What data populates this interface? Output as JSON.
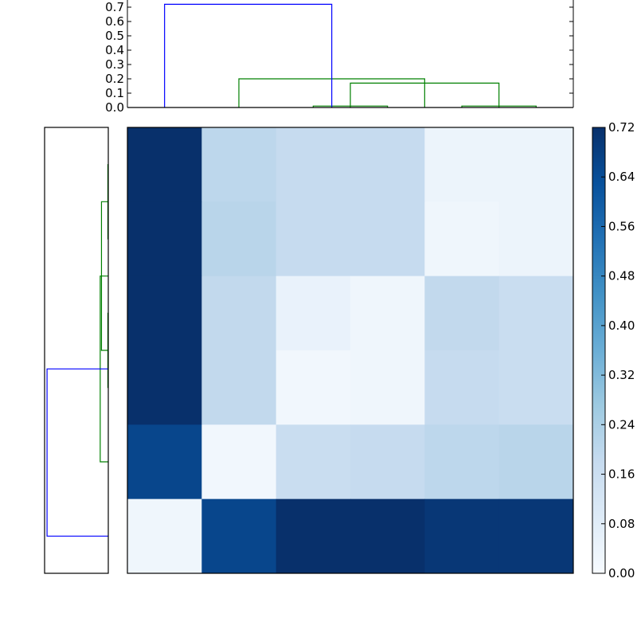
{
  "chart_data": [
    {
      "type": "dendrogram",
      "orientation": "top",
      "ylim": [
        0,
        0.75
      ],
      "yticks": [
        "0.0",
        "0.1",
        "0.2",
        "0.3",
        "0.4",
        "0.5",
        "0.6",
        "0.7"
      ],
      "leaf_count": 6,
      "links": [
        {
          "left": 2,
          "right": 3,
          "height": 0.01,
          "color": "#008000"
        },
        {
          "left": 4,
          "right": 5,
          "height": 0.01,
          "color": "#008000"
        },
        {
          "left": 2.5,
          "right": 4.5,
          "height": 0.17,
          "color": "#008000"
        },
        {
          "left": 1,
          "right": 3.5,
          "height": 0.2,
          "color": "#008000"
        },
        {
          "left": 0,
          "right": 2.25,
          "height": 0.72,
          "color": "#0000ff"
        }
      ],
      "leaf_height": 0
    },
    {
      "type": "dendrogram",
      "orientation": "left",
      "leaf_count": 6,
      "links": [
        {
          "left": 0,
          "right": 1,
          "height": 0.005,
          "color": "#008000"
        },
        {
          "left": 2,
          "right": 3,
          "height": 0.005,
          "color": "#008000"
        },
        {
          "left": 0.5,
          "right": 2.5,
          "height": 0.08,
          "color": "#008000"
        },
        {
          "left": 1.5,
          "right": 4,
          "height": 0.095,
          "color": "#008000"
        },
        {
          "left": 2.75,
          "right": 5,
          "height": 0.72,
          "color": "#0000ff"
        }
      ],
      "leaf_height": 0
    },
    {
      "type": "heatmap",
      "colormap": "Blues",
      "vmin": 0,
      "vmax": 0.72,
      "values": [
        [
          0.72,
          0.2,
          0.18,
          0.18,
          0.04,
          0.04
        ],
        [
          0.72,
          0.21,
          0.18,
          0.18,
          0.03,
          0.04
        ],
        [
          0.72,
          0.19,
          0.05,
          0.03,
          0.19,
          0.17
        ],
        [
          0.72,
          0.19,
          0.02,
          0.03,
          0.18,
          0.17
        ],
        [
          0.66,
          0.02,
          0.17,
          0.18,
          0.2,
          0.21
        ],
        [
          0.03,
          0.66,
          0.72,
          0.72,
          0.7,
          0.7
        ]
      ]
    },
    {
      "type": "colorbar",
      "colormap": "Blues",
      "vmin": 0,
      "vmax": 0.72,
      "ticks": [
        "0.00",
        "0.08",
        "0.16",
        "0.24",
        "0.32",
        "0.40",
        "0.48",
        "0.56",
        "0.64",
        "0.72"
      ]
    }
  ]
}
